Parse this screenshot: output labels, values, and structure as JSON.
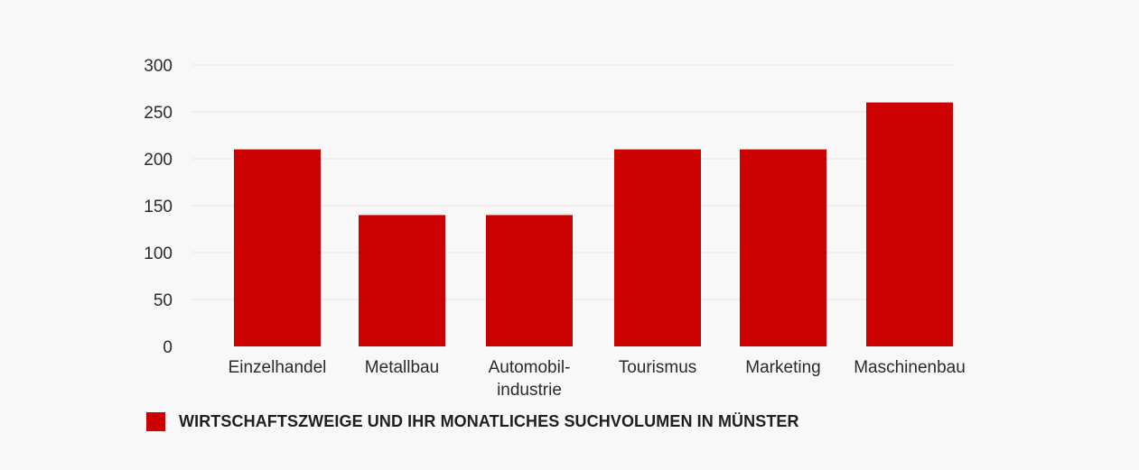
{
  "colors": {
    "bar": "#cc0000",
    "grid": "#e6e6e6",
    "background": "#f8f8f8"
  },
  "chart_data": {
    "type": "bar",
    "categories": [
      [
        "Einzelhandel"
      ],
      [
        "Metallbau"
      ],
      [
        "Automobil-",
        "industrie"
      ],
      [
        "Tourismus"
      ],
      [
        "Marketing"
      ],
      [
        "Maschinenbau"
      ]
    ],
    "series": [
      {
        "name": "WIRTSCHAFTSZWEIGE UND IHR MONATLICHES SUCHVOLUMEN IN MÜNSTER",
        "values": [
          210,
          140,
          140,
          210,
          210,
          260
        ]
      }
    ],
    "yticks": [
      0,
      50,
      100,
      150,
      200,
      250,
      300
    ],
    "ylim": [
      0,
      300
    ],
    "grid": true,
    "legend_position": "bottom-left"
  }
}
